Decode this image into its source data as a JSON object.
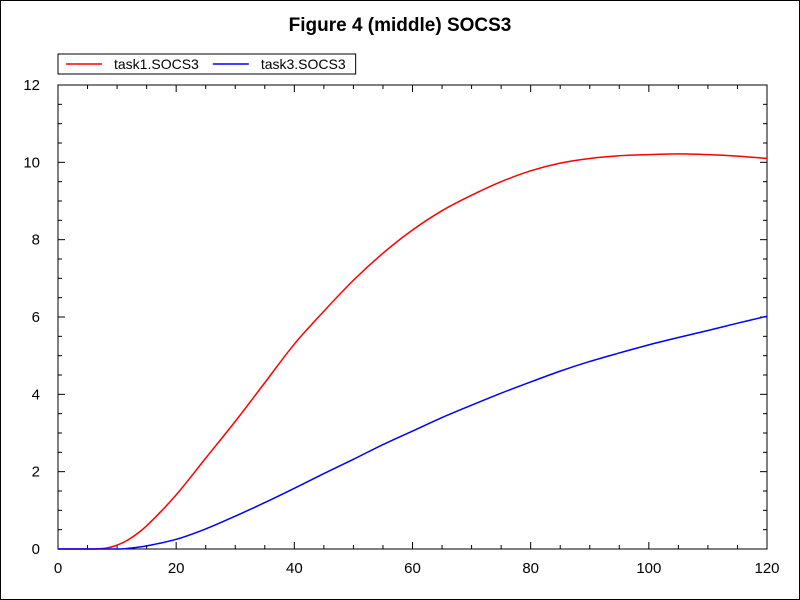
{
  "chart_data": {
    "type": "line",
    "title": "Figure 4 (middle) SOCS3",
    "xlabel": "",
    "ylabel": "",
    "xlim": [
      0,
      120
    ],
    "ylim": [
      0,
      12
    ],
    "x_ticks": [
      0,
      20,
      40,
      60,
      80,
      100,
      120
    ],
    "y_ticks": [
      0,
      2,
      4,
      6,
      8,
      10,
      12
    ],
    "grid": false,
    "legend_placement": "top-left",
    "series": [
      {
        "name": "task1.SOCS3",
        "color": "#ff0000",
        "x": [
          0,
          5,
          8,
          10,
          12,
          15,
          20,
          25,
          30,
          35,
          40,
          45,
          50,
          55,
          60,
          65,
          70,
          75,
          80,
          85,
          90,
          95,
          100,
          105,
          110,
          115,
          120
        ],
        "y": [
          0,
          0,
          0.02,
          0.1,
          0.25,
          0.6,
          1.4,
          2.35,
          3.3,
          4.3,
          5.3,
          6.15,
          6.95,
          7.65,
          8.25,
          8.75,
          9.15,
          9.5,
          9.78,
          9.98,
          10.1,
          10.17,
          10.2,
          10.22,
          10.2,
          10.16,
          10.1
        ]
      },
      {
        "name": "task3.SOCS3",
        "color": "#0000ff",
        "x": [
          0,
          5,
          10,
          12,
          15,
          20,
          25,
          30,
          35,
          40,
          45,
          50,
          55,
          60,
          65,
          70,
          75,
          80,
          85,
          90,
          95,
          100,
          105,
          110,
          115,
          120
        ],
        "y": [
          0,
          0,
          0,
          0.02,
          0.08,
          0.25,
          0.52,
          0.85,
          1.2,
          1.57,
          1.95,
          2.32,
          2.7,
          3.05,
          3.4,
          3.72,
          4.03,
          4.32,
          4.6,
          4.85,
          5.07,
          5.28,
          5.47,
          5.65,
          5.84,
          6.02
        ]
      }
    ]
  }
}
